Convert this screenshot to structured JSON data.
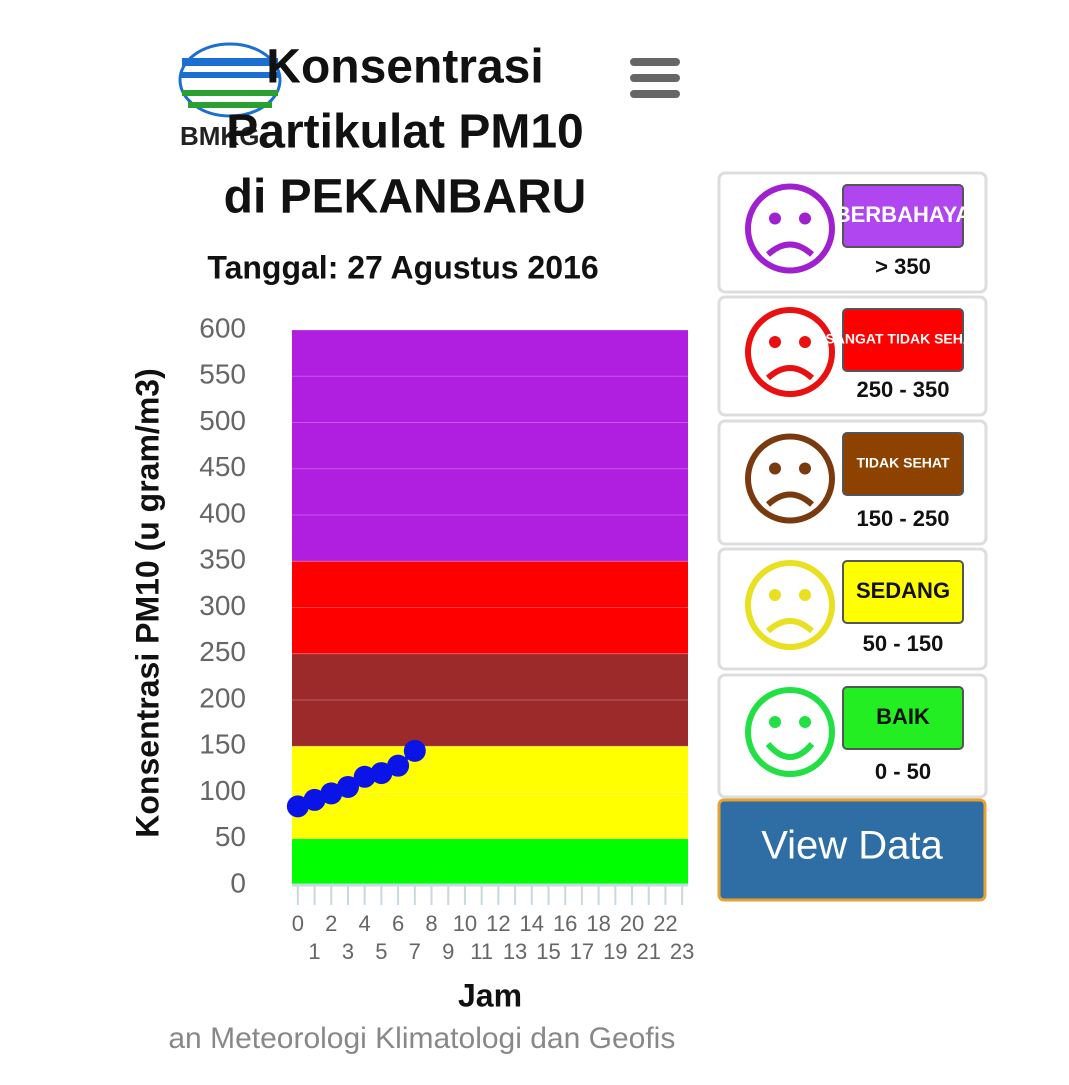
{
  "logo": "BMKG",
  "chart_data": {
    "type": "line",
    "title_lines": [
      "Konsentrasi",
      "Partikulat PM10",
      "di PEKANBARU"
    ],
    "subtitle": "Tanggal: 27 Agustus 2016",
    "y_label": "Konsentrasi PM10 (u gram/m3)",
    "x_label": "Jam",
    "x": [
      0,
      1,
      2,
      3,
      4,
      5,
      6,
      7
    ],
    "series": [
      {
        "color": "#0a14e6",
        "values": [
          85,
          92,
          99,
          106,
          117,
          121,
          129,
          145
        ]
      }
    ],
    "xlim": [
      -0.35,
      23.35
    ],
    "xticks": [
      0,
      1,
      2,
      3,
      4,
      5,
      6,
      7,
      8,
      9,
      10,
      11,
      12,
      13,
      14,
      15,
      16,
      17,
      18,
      19,
      20,
      21,
      22,
      23
    ],
    "ylim": [
      0,
      600
    ],
    "yticks": [
      0,
      50,
      100,
      150,
      200,
      250,
      300,
      350,
      400,
      450,
      500,
      550,
      600
    ],
    "bands": [
      {
        "from": 0,
        "to": 50,
        "color": "#00ff00"
      },
      {
        "from": 50,
        "to": 150,
        "color": "#ffff00"
      },
      {
        "from": 150,
        "to": 250,
        "color": "#9c2a2a"
      },
      {
        "from": 250,
        "to": 350,
        "color": "#ff0000"
      },
      {
        "from": 350,
        "to": 600,
        "color": "#b01ee0"
      }
    ]
  },
  "legend": [
    {
      "label": "BERBAHAYA",
      "range": "> 350",
      "color": "#b046f0",
      "face_color": "#a020d0",
      "text_color": "#ffffff"
    },
    {
      "label": "SANGAT TIDAK SEHAT",
      "range": "250 - 350",
      "color": "#ff0000",
      "face_color": "#e81010",
      "text_color": "#ffffff"
    },
    {
      "label": "TIDAK SEHAT",
      "range": "150 - 250",
      "color": "#8e4200",
      "face_color": "#7a3a10",
      "text_color": "#ffffff"
    },
    {
      "label": "SEDANG",
      "range": "50 - 150",
      "color": "#ffff00",
      "face_color": "#e8e020",
      "text_color": "#111111"
    },
    {
      "label": "BAIK",
      "range": "0 - 50",
      "color": "#22ee22",
      "face_color": "#22e044",
      "text_color": "#111111"
    }
  ],
  "button": "View Data",
  "footer": "r : Badan Meteorologi Klimatologi dan Geofis"
}
